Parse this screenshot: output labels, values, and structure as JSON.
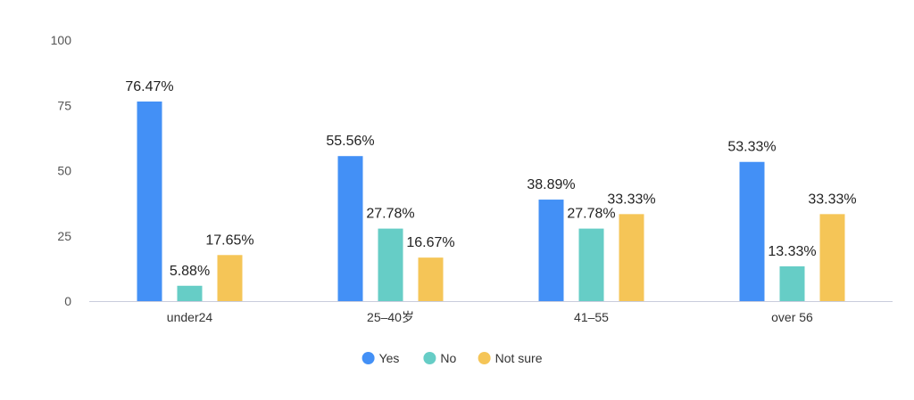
{
  "chart_data": {
    "type": "bar",
    "categories": [
      "under24",
      "25–40岁",
      "41–55",
      "over 56"
    ],
    "series": [
      {
        "name": "Yes",
        "values": [
          76.47,
          55.56,
          38.89,
          53.33
        ],
        "labels": [
          "76.47%",
          "55.56%",
          "38.89%",
          "53.33%"
        ],
        "color": "#4390f6"
      },
      {
        "name": "No",
        "values": [
          5.88,
          27.78,
          27.78,
          13.33
        ],
        "labels": [
          "5.88%",
          "27.78%",
          "27.78%",
          "13.33%"
        ],
        "color": "#66cdc6"
      },
      {
        "name": "Not sure",
        "values": [
          17.65,
          16.67,
          33.33,
          33.33
        ],
        "labels": [
          "17.65%",
          "16.67%",
          "33.33%",
          "33.33%"
        ],
        "color": "#f5c557"
      }
    ],
    "yticks": [
      "0",
      "25",
      "50",
      "75",
      "100"
    ],
    "ylim": [
      0,
      100
    ],
    "grid": false,
    "legend_position": "bottom",
    "axis_color": "#c9ccdc"
  }
}
